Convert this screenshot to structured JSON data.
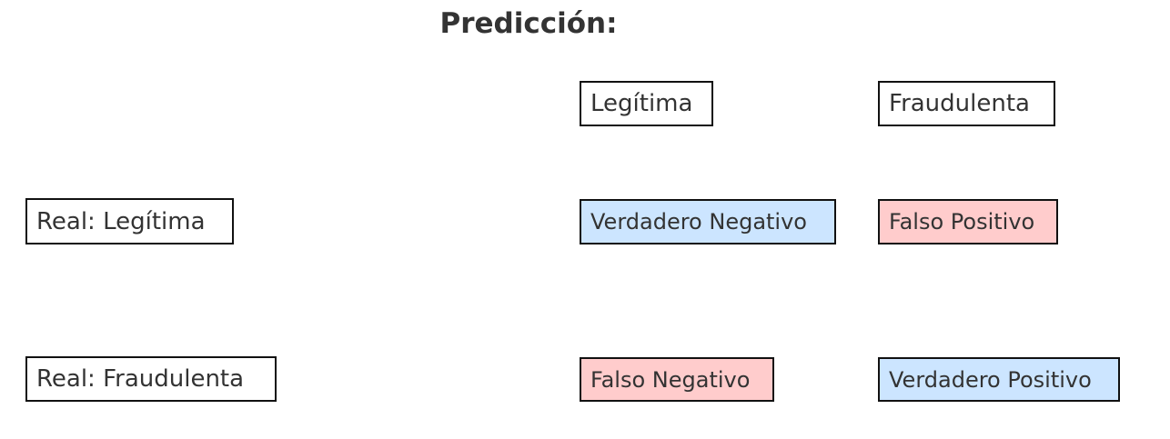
{
  "title": "Predicción:",
  "colors": {
    "correct": "#cce5ff",
    "incorrect": "#ffcccc",
    "border": "#111111",
    "text": "#333333"
  },
  "columns": {
    "legit": "Legítima",
    "fraud": "Fraudulenta"
  },
  "rows": {
    "legit": "Real: Legítima",
    "fraud": "Real: Fraudulenta"
  },
  "cells": {
    "true_negative": {
      "label": "Verdadero Negativo",
      "kind": "correct"
    },
    "false_positive": {
      "label": "Falso Positivo",
      "kind": "incorrect"
    },
    "false_negative": {
      "label": "Falso Negativo",
      "kind": "incorrect"
    },
    "true_positive": {
      "label": "Verdadero Positivo",
      "kind": "correct"
    }
  }
}
